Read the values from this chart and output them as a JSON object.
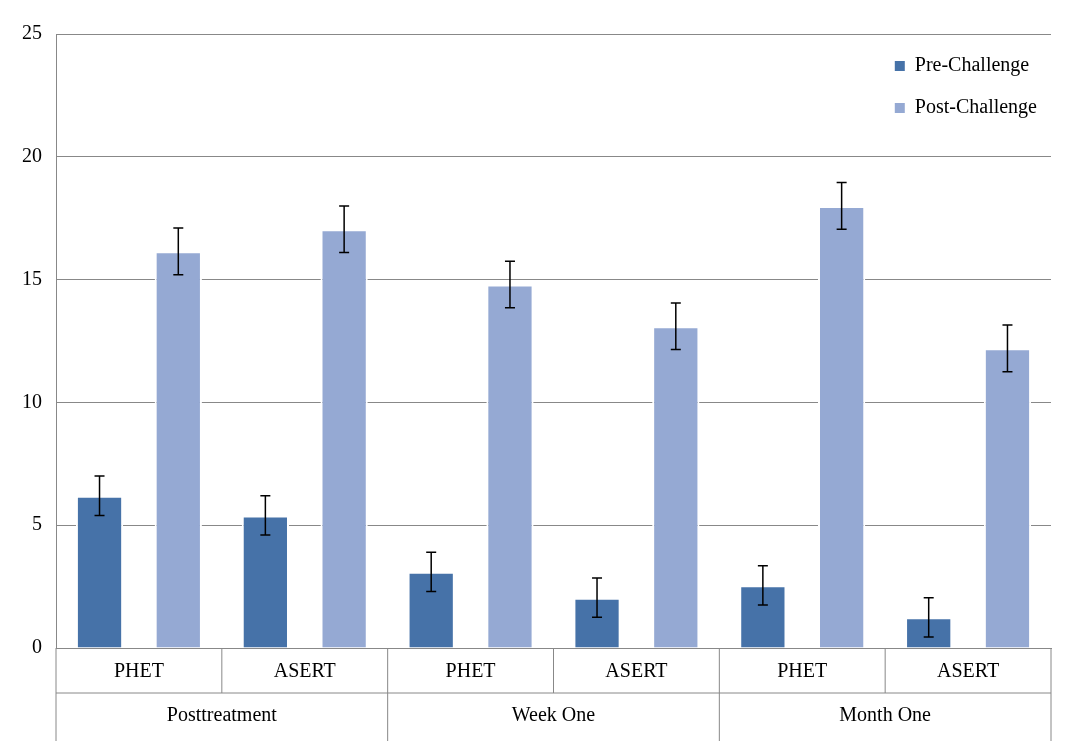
{
  "chart_data": {
    "type": "bar",
    "categories": [
      "PHET",
      "ASERT",
      "PHET",
      "ASERT",
      "PHET",
      "ASERT"
    ],
    "series": [
      {
        "name": "Pre-Challenge",
        "color": "#4672a8",
        "values": [
          6.2,
          5.4,
          3.1,
          2.05,
          2.55,
          1.25
        ],
        "errors": [
          0.8,
          0.8,
          0.8,
          0.8,
          0.8,
          0.8
        ]
      },
      {
        "name": "Post-Challenge",
        "color": "#95a9d3",
        "values": [
          16.15,
          17.05,
          14.8,
          13.1,
          18,
          12.2
        ],
        "errors": [
          0.95,
          0.95,
          0.95,
          0.95,
          0.95,
          0.95
        ]
      }
    ],
    "annotations": [
      "Posttreatment",
      "Week One",
      "Month One"
    ],
    "ylim": [
      0,
      25
    ],
    "yticks": [
      0,
      5,
      10,
      15,
      20,
      25
    ],
    "grid": "y",
    "legend": "top right",
    "marker": "square"
  }
}
